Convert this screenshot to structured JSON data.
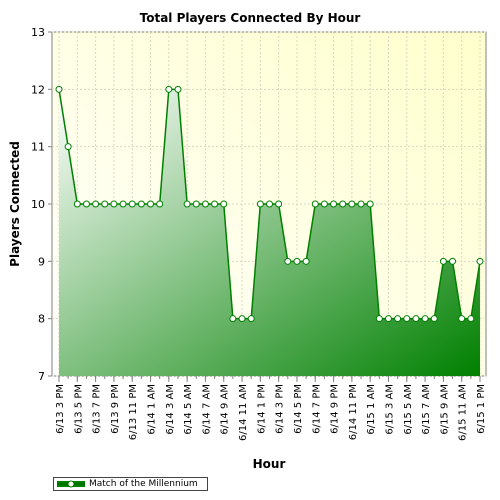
{
  "chart_data": {
    "type": "area",
    "title": "Total Players Connected By Hour",
    "xlabel": "Hour",
    "ylabel": "Players Connected",
    "ylim": [
      7,
      13
    ],
    "yticks": [
      7,
      8,
      9,
      10,
      11,
      12,
      13
    ],
    "grid": true,
    "legend_position": "bottom-left",
    "x": [
      "6/13 3 PM",
      "6/13 4 PM",
      "6/13 5 PM",
      "6/13 6 PM",
      "6/13 7 PM",
      "6/13 8 PM",
      "6/13 9 PM",
      "6/13 10 PM",
      "6/13 11 PM",
      "6/14 12 AM",
      "6/14 1 AM",
      "6/14 2 AM",
      "6/14 3 AM",
      "6/14 4 AM",
      "6/14 5 AM",
      "6/14 6 AM",
      "6/14 7 AM",
      "6/14 8 AM",
      "6/14 9 AM",
      "6/14 10 AM",
      "6/14 11 AM",
      "6/14 12 PM",
      "6/14 1 PM",
      "6/14 2 PM",
      "6/14 3 PM",
      "6/14 4 PM",
      "6/14 5 PM",
      "6/14 6 PM",
      "6/14 7 PM",
      "6/14 8 PM",
      "6/14 9 PM",
      "6/14 10 PM",
      "6/14 11 PM",
      "6/15 12 AM",
      "6/15 1 AM",
      "6/15 2 AM",
      "6/15 3 AM",
      "6/15 4 AM",
      "6/15 5 AM",
      "6/15 6 AM",
      "6/15 7 AM",
      "6/15 8 AM",
      "6/15 9 AM",
      "6/15 10 AM",
      "6/15 11 AM",
      "6/15 12 PM",
      "6/15 1 PM"
    ],
    "x_tick_labels": [
      "6/13 3 PM",
      "6/13 5 PM",
      "6/13 7 PM",
      "6/13 9 PM",
      "6/13 11 PM",
      "6/14 1 AM",
      "6/14 3 AM",
      "6/14 5 AM",
      "6/14 7 AM",
      "6/14 9 AM",
      "6/14 11 AM",
      "6/14 1 PM",
      "6/14 3 PM",
      "6/14 5 PM",
      "6/14 7 PM",
      "6/14 9 PM",
      "6/14 11 PM",
      "6/15 1 AM",
      "6/15 3 AM",
      "6/15 5 AM",
      "6/15 7 AM",
      "6/15 9 AM",
      "6/15 11 AM",
      "6/15 1 PM"
    ],
    "series": [
      {
        "name": "Match of the Millennium",
        "color": "#008000",
        "values": [
          12,
          11,
          10,
          10,
          10,
          10,
          10,
          10,
          10,
          10,
          10,
          10,
          12,
          12,
          10,
          10,
          10,
          10,
          10,
          8,
          8,
          8,
          10,
          10,
          10,
          9,
          9,
          9,
          10,
          10,
          10,
          10,
          10,
          10,
          10,
          8,
          8,
          8,
          8,
          8,
          8,
          8,
          9,
          9,
          8,
          8,
          9
        ]
      }
    ]
  }
}
